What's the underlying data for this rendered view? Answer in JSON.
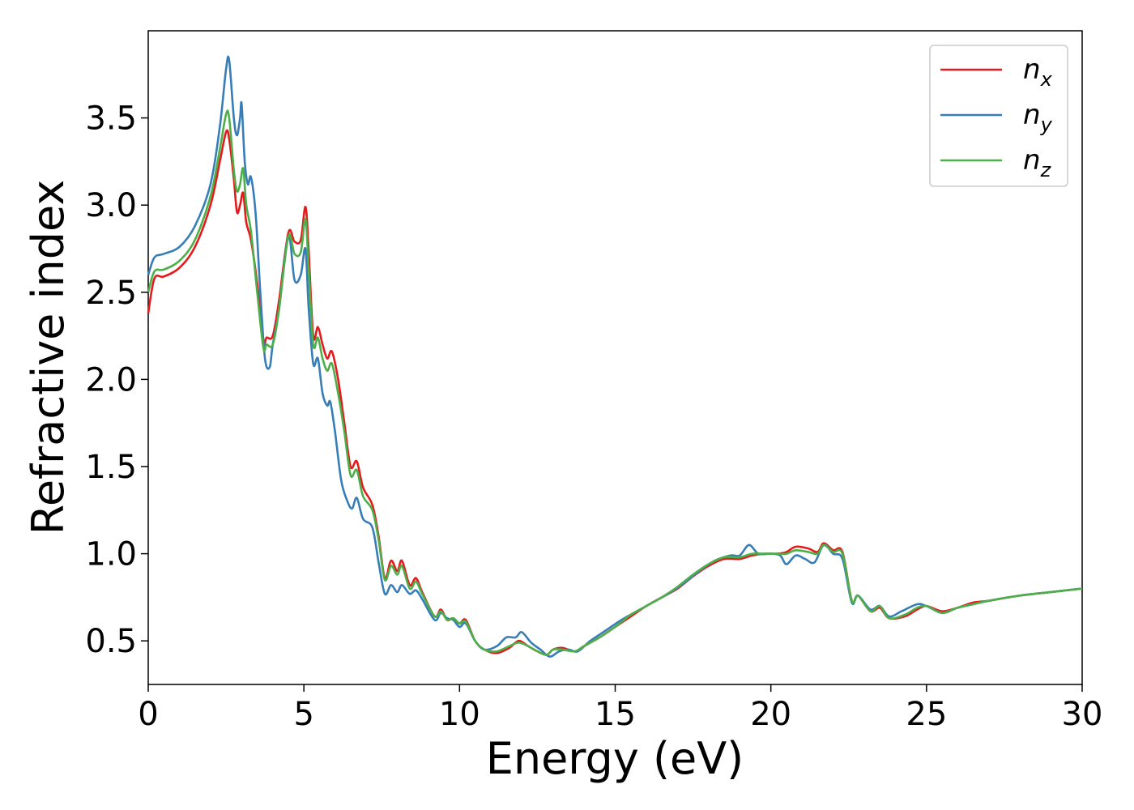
{
  "chart_data": {
    "type": "line",
    "title": "",
    "xlabel": "Energy (eV)",
    "ylabel": "Refractive index",
    "xlim": [
      0,
      30
    ],
    "ylim": [
      0.25,
      4.0
    ],
    "grid": false,
    "legend_position": "top-right",
    "x_ticks": [
      "0",
      "5",
      "10",
      "15",
      "20",
      "25",
      "30"
    ],
    "y_ticks": [
      "0.5",
      "1.0",
      "1.5",
      "2.0",
      "2.5",
      "3.0",
      "3.5"
    ],
    "series": [
      {
        "name": "n",
        "subscript": "x",
        "color": "#e41a1c",
        "points": [
          [
            0,
            2.38
          ],
          [
            0.2,
            2.58
          ],
          [
            0.5,
            2.59
          ],
          [
            1.0,
            2.64
          ],
          [
            1.5,
            2.76
          ],
          [
            2.0,
            3.0
          ],
          [
            2.3,
            3.25
          ],
          [
            2.5,
            3.42
          ],
          [
            2.6,
            3.38
          ],
          [
            2.75,
            3.15
          ],
          [
            2.85,
            2.96
          ],
          [
            2.95,
            3.0
          ],
          [
            3.05,
            3.07
          ],
          [
            3.15,
            2.9
          ],
          [
            3.3,
            2.8
          ],
          [
            3.5,
            2.55
          ],
          [
            3.7,
            2.22
          ],
          [
            3.8,
            2.24
          ],
          [
            4.0,
            2.25
          ],
          [
            4.2,
            2.45
          ],
          [
            4.5,
            2.84
          ],
          [
            4.7,
            2.79
          ],
          [
            4.9,
            2.8
          ],
          [
            5.05,
            2.99
          ],
          [
            5.15,
            2.75
          ],
          [
            5.3,
            2.25
          ],
          [
            5.45,
            2.3
          ],
          [
            5.6,
            2.2
          ],
          [
            5.75,
            2.12
          ],
          [
            5.9,
            2.16
          ],
          [
            6.1,
            2.0
          ],
          [
            6.3,
            1.75
          ],
          [
            6.5,
            1.5
          ],
          [
            6.7,
            1.53
          ],
          [
            6.9,
            1.38
          ],
          [
            7.2,
            1.28
          ],
          [
            7.4,
            1.1
          ],
          [
            7.6,
            0.86
          ],
          [
            7.8,
            0.96
          ],
          [
            8.0,
            0.9
          ],
          [
            8.15,
            0.96
          ],
          [
            8.4,
            0.82
          ],
          [
            8.6,
            0.86
          ],
          [
            8.8,
            0.78
          ],
          [
            9.2,
            0.64
          ],
          [
            9.4,
            0.68
          ],
          [
            9.6,
            0.62
          ],
          [
            9.8,
            0.63
          ],
          [
            10.0,
            0.6
          ],
          [
            10.2,
            0.62
          ],
          [
            10.5,
            0.5
          ],
          [
            10.8,
            0.45
          ],
          [
            11.2,
            0.43
          ],
          [
            11.6,
            0.46
          ],
          [
            11.9,
            0.5
          ],
          [
            12.2,
            0.47
          ],
          [
            12.5,
            0.44
          ],
          [
            12.8,
            0.42
          ],
          [
            13.0,
            0.45
          ],
          [
            13.3,
            0.46
          ],
          [
            13.7,
            0.44
          ],
          [
            14.0,
            0.47
          ],
          [
            14.5,
            0.52
          ],
          [
            15.0,
            0.58
          ],
          [
            15.5,
            0.64
          ],
          [
            16.0,
            0.7
          ],
          [
            16.5,
            0.75
          ],
          [
            17.0,
            0.8
          ],
          [
            17.5,
            0.87
          ],
          [
            18.0,
            0.93
          ],
          [
            18.5,
            0.97
          ],
          [
            19.0,
            0.97
          ],
          [
            19.4,
            0.99
          ],
          [
            19.8,
            1.0
          ],
          [
            20.2,
            1.0
          ],
          [
            20.5,
            1.01
          ],
          [
            20.8,
            1.04
          ],
          [
            21.2,
            1.03
          ],
          [
            21.5,
            1.01
          ],
          [
            21.7,
            1.06
          ],
          [
            22.0,
            1.02
          ],
          [
            22.3,
            1.01
          ],
          [
            22.6,
            0.73
          ],
          [
            22.8,
            0.76
          ],
          [
            23.2,
            0.67
          ],
          [
            23.5,
            0.69
          ],
          [
            23.8,
            0.63
          ],
          [
            24.3,
            0.64
          ],
          [
            24.7,
            0.68
          ],
          [
            25.0,
            0.7
          ],
          [
            25.5,
            0.67
          ],
          [
            26.0,
            0.69
          ],
          [
            26.5,
            0.72
          ],
          [
            27.0,
            0.73
          ],
          [
            28.0,
            0.76
          ],
          [
            29.0,
            0.78
          ],
          [
            30.0,
            0.8
          ]
        ]
      },
      {
        "name": "n",
        "subscript": "y",
        "color": "#377eb8",
        "points": [
          [
            0,
            2.6
          ],
          [
            0.2,
            2.7
          ],
          [
            0.5,
            2.72
          ],
          [
            1.0,
            2.76
          ],
          [
            1.5,
            2.88
          ],
          [
            2.0,
            3.12
          ],
          [
            2.3,
            3.45
          ],
          [
            2.5,
            3.78
          ],
          [
            2.6,
            3.83
          ],
          [
            2.75,
            3.5
          ],
          [
            2.85,
            3.4
          ],
          [
            2.95,
            3.5
          ],
          [
            3.0,
            3.58
          ],
          [
            3.1,
            3.25
          ],
          [
            3.2,
            3.12
          ],
          [
            3.3,
            3.16
          ],
          [
            3.45,
            2.95
          ],
          [
            3.6,
            2.5
          ],
          [
            3.75,
            2.12
          ],
          [
            3.9,
            2.07
          ],
          [
            4.0,
            2.2
          ],
          [
            4.2,
            2.4
          ],
          [
            4.5,
            2.82
          ],
          [
            4.7,
            2.57
          ],
          [
            4.9,
            2.6
          ],
          [
            5.05,
            2.75
          ],
          [
            5.15,
            2.42
          ],
          [
            5.3,
            2.09
          ],
          [
            5.45,
            2.12
          ],
          [
            5.6,
            1.92
          ],
          [
            5.75,
            1.85
          ],
          [
            5.85,
            1.87
          ],
          [
            6.0,
            1.7
          ],
          [
            6.2,
            1.42
          ],
          [
            6.4,
            1.3
          ],
          [
            6.55,
            1.26
          ],
          [
            6.7,
            1.32
          ],
          [
            6.9,
            1.2
          ],
          [
            7.2,
            1.15
          ],
          [
            7.4,
            0.95
          ],
          [
            7.6,
            0.77
          ],
          [
            7.8,
            0.82
          ],
          [
            8.0,
            0.78
          ],
          [
            8.15,
            0.82
          ],
          [
            8.4,
            0.77
          ],
          [
            8.6,
            0.79
          ],
          [
            8.8,
            0.74
          ],
          [
            9.2,
            0.62
          ],
          [
            9.4,
            0.66
          ],
          [
            9.6,
            0.63
          ],
          [
            9.8,
            0.62
          ],
          [
            10.0,
            0.58
          ],
          [
            10.2,
            0.6
          ],
          [
            10.5,
            0.5
          ],
          [
            10.8,
            0.45
          ],
          [
            11.2,
            0.47
          ],
          [
            11.5,
            0.52
          ],
          [
            11.8,
            0.52
          ],
          [
            12.0,
            0.55
          ],
          [
            12.3,
            0.49
          ],
          [
            12.6,
            0.45
          ],
          [
            12.9,
            0.41
          ],
          [
            13.2,
            0.44
          ],
          [
            13.5,
            0.45
          ],
          [
            13.8,
            0.44
          ],
          [
            14.2,
            0.5
          ],
          [
            14.7,
            0.56
          ],
          [
            15.2,
            0.62
          ],
          [
            15.7,
            0.67
          ],
          [
            16.2,
            0.72
          ],
          [
            16.7,
            0.77
          ],
          [
            17.2,
            0.83
          ],
          [
            17.7,
            0.9
          ],
          [
            18.2,
            0.96
          ],
          [
            18.7,
            0.99
          ],
          [
            19.0,
            0.99
          ],
          [
            19.3,
            1.05
          ],
          [
            19.6,
            1.0
          ],
          [
            20.0,
            1.0
          ],
          [
            20.3,
            0.99
          ],
          [
            20.5,
            0.94
          ],
          [
            20.8,
            0.99
          ],
          [
            21.1,
            0.97
          ],
          [
            21.4,
            0.95
          ],
          [
            21.7,
            1.05
          ],
          [
            22.0,
            1.0
          ],
          [
            22.3,
            0.97
          ],
          [
            22.6,
            0.72
          ],
          [
            22.8,
            0.76
          ],
          [
            23.2,
            0.68
          ],
          [
            23.5,
            0.7
          ],
          [
            23.8,
            0.64
          ],
          [
            24.2,
            0.67
          ],
          [
            24.7,
            0.71
          ],
          [
            25.0,
            0.7
          ],
          [
            25.5,
            0.66
          ],
          [
            26.0,
            0.69
          ],
          [
            26.5,
            0.71
          ],
          [
            27.0,
            0.73
          ],
          [
            28.0,
            0.76
          ],
          [
            29.0,
            0.78
          ],
          [
            30.0,
            0.8
          ]
        ]
      },
      {
        "name": "n",
        "subscript": "z",
        "color": "#4daf4a",
        "points": [
          [
            0,
            2.5
          ],
          [
            0.2,
            2.62
          ],
          [
            0.5,
            2.63
          ],
          [
            1.0,
            2.68
          ],
          [
            1.5,
            2.8
          ],
          [
            2.0,
            3.05
          ],
          [
            2.3,
            3.32
          ],
          [
            2.5,
            3.52
          ],
          [
            2.6,
            3.5
          ],
          [
            2.75,
            3.2
          ],
          [
            2.85,
            3.08
          ],
          [
            2.95,
            3.12
          ],
          [
            3.05,
            3.21
          ],
          [
            3.15,
            3.0
          ],
          [
            3.3,
            2.85
          ],
          [
            3.5,
            2.5
          ],
          [
            3.7,
            2.18
          ],
          [
            3.8,
            2.2
          ],
          [
            4.0,
            2.2
          ],
          [
            4.2,
            2.4
          ],
          [
            4.5,
            2.82
          ],
          [
            4.7,
            2.72
          ],
          [
            4.9,
            2.73
          ],
          [
            5.05,
            2.92
          ],
          [
            5.15,
            2.65
          ],
          [
            5.3,
            2.2
          ],
          [
            5.45,
            2.24
          ],
          [
            5.6,
            2.12
          ],
          [
            5.75,
            2.05
          ],
          [
            5.9,
            2.09
          ],
          [
            6.1,
            1.92
          ],
          [
            6.3,
            1.7
          ],
          [
            6.5,
            1.45
          ],
          [
            6.7,
            1.48
          ],
          [
            6.9,
            1.33
          ],
          [
            7.2,
            1.25
          ],
          [
            7.4,
            1.08
          ],
          [
            7.6,
            0.85
          ],
          [
            7.8,
            0.93
          ],
          [
            8.0,
            0.88
          ],
          [
            8.15,
            0.93
          ],
          [
            8.4,
            0.8
          ],
          [
            8.6,
            0.84
          ],
          [
            8.8,
            0.77
          ],
          [
            9.2,
            0.64
          ],
          [
            9.4,
            0.67
          ],
          [
            9.6,
            0.62
          ],
          [
            9.8,
            0.63
          ],
          [
            10.0,
            0.6
          ],
          [
            10.2,
            0.61
          ],
          [
            10.5,
            0.5
          ],
          [
            10.8,
            0.45
          ],
          [
            11.2,
            0.44
          ],
          [
            11.6,
            0.47
          ],
          [
            11.9,
            0.49
          ],
          [
            12.2,
            0.47
          ],
          [
            12.5,
            0.44
          ],
          [
            12.8,
            0.42
          ],
          [
            13.0,
            0.45
          ],
          [
            13.3,
            0.45
          ],
          [
            13.7,
            0.44
          ],
          [
            14.0,
            0.47
          ],
          [
            14.5,
            0.52
          ],
          [
            15.0,
            0.58
          ],
          [
            15.5,
            0.65
          ],
          [
            16.0,
            0.7
          ],
          [
            16.5,
            0.75
          ],
          [
            17.0,
            0.81
          ],
          [
            17.5,
            0.88
          ],
          [
            18.0,
            0.94
          ],
          [
            18.5,
            0.98
          ],
          [
            19.0,
            0.98
          ],
          [
            19.4,
            1.0
          ],
          [
            19.8,
            1.0
          ],
          [
            20.2,
            1.0
          ],
          [
            20.5,
            1.0
          ],
          [
            20.8,
            1.02
          ],
          [
            21.2,
            1.01
          ],
          [
            21.5,
            1.0
          ],
          [
            21.7,
            1.05
          ],
          [
            22.0,
            1.01
          ],
          [
            22.3,
            1.0
          ],
          [
            22.6,
            0.73
          ],
          [
            22.8,
            0.76
          ],
          [
            23.2,
            0.67
          ],
          [
            23.5,
            0.7
          ],
          [
            23.8,
            0.63
          ],
          [
            24.3,
            0.65
          ],
          [
            24.7,
            0.69
          ],
          [
            25.0,
            0.7
          ],
          [
            25.5,
            0.66
          ],
          [
            26.0,
            0.69
          ],
          [
            26.5,
            0.71
          ],
          [
            27.0,
            0.73
          ],
          [
            28.0,
            0.76
          ],
          [
            29.0,
            0.78
          ],
          [
            30.0,
            0.8
          ]
        ]
      }
    ]
  }
}
